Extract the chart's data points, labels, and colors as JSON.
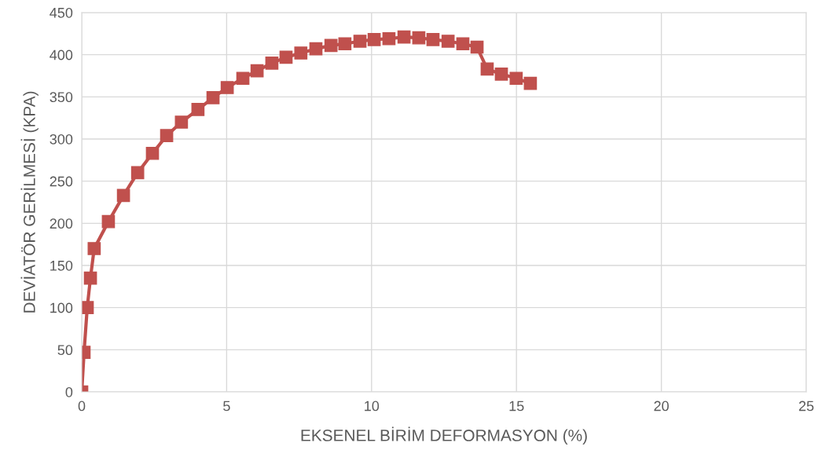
{
  "chart_data": {
    "type": "line",
    "xlabel": "EKSENEL BİRİM DEFORMASYON (%)",
    "ylabel": "DEVİATÖR GERİLMESİ (KPA)",
    "xlim": [
      0,
      25
    ],
    "xticks": [
      0,
      5,
      10,
      15,
      20,
      25
    ],
    "ylim": [
      0,
      450
    ],
    "yticks": [
      0,
      50,
      100,
      150,
      200,
      250,
      300,
      350,
      400,
      450
    ],
    "grid": true,
    "marker": "square",
    "line_style": "solid",
    "series": [
      {
        "color": "#c0504d",
        "x": [
          0,
          0.08,
          0.19,
          0.3,
          0.43,
          0.92,
          1.44,
          1.93,
          2.44,
          2.93,
          3.44,
          4.01,
          4.53,
          5.02,
          5.56,
          6.05,
          6.56,
          7.05,
          7.56,
          8.08,
          8.6,
          9.08,
          9.6,
          10.09,
          10.6,
          11.12,
          11.63,
          12.12,
          12.64,
          13.15,
          13.64,
          13.99,
          14.48,
          14.99,
          15.48
        ],
        "values": [
          0,
          47,
          100,
          135,
          170,
          202,
          233,
          260,
          283,
          304,
          320,
          335,
          349,
          361,
          372,
          381,
          390,
          397,
          402,
          407,
          411,
          413,
          416,
          418,
          419,
          421,
          420,
          418,
          416,
          413,
          409,
          383,
          377,
          372,
          366
        ]
      }
    ]
  }
}
